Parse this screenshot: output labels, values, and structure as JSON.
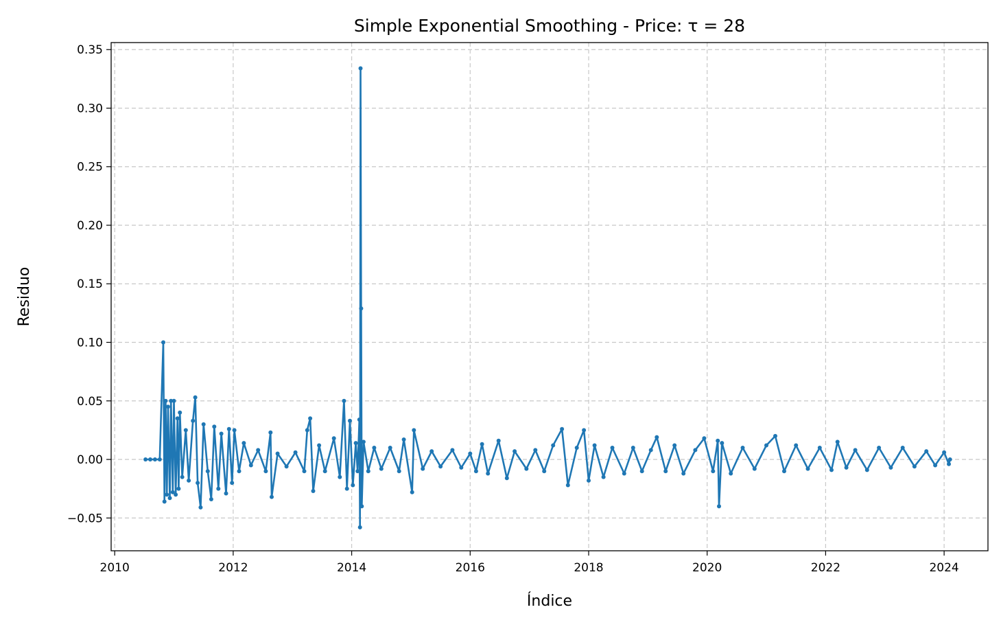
{
  "chart_data": {
    "type": "line",
    "title": "Simple Exponential Smoothing - Price: τ = 28",
    "xlabel": "Índice",
    "ylabel": "Residuo",
    "xlim": [
      2009.94,
      2024.74
    ],
    "ylim": [
      -0.078,
      0.356
    ],
    "x_ticks": [
      2010,
      2012,
      2014,
      2016,
      2018,
      2020,
      2022,
      2024
    ],
    "x_tick_labels": [
      "2010",
      "2012",
      "2014",
      "2016",
      "2018",
      "2020",
      "2022",
      "2024"
    ],
    "y_ticks": [
      -0.05,
      0.0,
      0.05,
      0.1,
      0.15,
      0.2,
      0.25,
      0.3,
      0.35
    ],
    "y_tick_labels": [
      "−0.05",
      "0.00",
      "0.05",
      "0.10",
      "0.15",
      "0.20",
      "0.25",
      "0.30",
      "0.35"
    ],
    "grid": true,
    "legend": "none",
    "colors": {
      "series": "#1f77b4",
      "grid": "#c8c8c8",
      "axes": "#000000"
    },
    "series": [
      {
        "marker": "circle",
        "points": [
          [
            2010.52,
            0.0
          ],
          [
            2010.6,
            0.0
          ],
          [
            2010.68,
            0.0
          ],
          [
            2010.76,
            0.0
          ],
          [
            2010.82,
            0.1
          ],
          [
            2010.84,
            -0.036
          ],
          [
            2010.86,
            0.05
          ],
          [
            2010.88,
            -0.03
          ],
          [
            2010.9,
            0.045
          ],
          [
            2010.93,
            -0.033
          ],
          [
            2010.95,
            0.05
          ],
          [
            2010.98,
            -0.028
          ],
          [
            2011.0,
            0.05
          ],
          [
            2011.03,
            -0.03
          ],
          [
            2011.06,
            0.035
          ],
          [
            2011.08,
            -0.025
          ],
          [
            2011.1,
            0.04
          ],
          [
            2011.14,
            -0.015
          ],
          [
            2011.2,
            0.025
          ],
          [
            2011.25,
            -0.018
          ],
          [
            2011.32,
            0.033
          ],
          [
            2011.36,
            0.053
          ],
          [
            2011.4,
            -0.02
          ],
          [
            2011.45,
            -0.041
          ],
          [
            2011.5,
            0.03
          ],
          [
            2011.57,
            -0.01
          ],
          [
            2011.63,
            -0.034
          ],
          [
            2011.68,
            0.028
          ],
          [
            2011.75,
            -0.025
          ],
          [
            2011.8,
            0.022
          ],
          [
            2011.88,
            -0.029
          ],
          [
            2011.93,
            0.026
          ],
          [
            2011.98,
            -0.02
          ],
          [
            2012.02,
            0.025
          ],
          [
            2012.1,
            -0.01
          ],
          [
            2012.18,
            0.014
          ],
          [
            2012.3,
            -0.005
          ],
          [
            2012.42,
            0.008
          ],
          [
            2012.55,
            -0.01
          ],
          [
            2012.63,
            0.023
          ],
          [
            2012.65,
            -0.032
          ],
          [
            2012.75,
            0.005
          ],
          [
            2012.9,
            -0.006
          ],
          [
            2013.05,
            0.006
          ],
          [
            2013.2,
            -0.01
          ],
          [
            2013.25,
            0.025
          ],
          [
            2013.3,
            0.035
          ],
          [
            2013.35,
            -0.027
          ],
          [
            2013.45,
            0.012
          ],
          [
            2013.55,
            -0.01
          ],
          [
            2013.7,
            0.018
          ],
          [
            2013.8,
            -0.015
          ],
          [
            2013.87,
            0.05
          ],
          [
            2013.92,
            -0.025
          ],
          [
            2013.97,
            0.033
          ],
          [
            2014.02,
            -0.022
          ],
          [
            2014.07,
            0.014
          ],
          [
            2014.1,
            -0.01
          ],
          [
            2014.13,
            0.034
          ],
          [
            2014.14,
            -0.058
          ],
          [
            2014.15,
            0.334
          ],
          [
            2014.16,
            0.129
          ],
          [
            2014.17,
            -0.04
          ],
          [
            2014.2,
            0.015
          ],
          [
            2014.28,
            -0.01
          ],
          [
            2014.38,
            0.01
          ],
          [
            2014.5,
            -0.008
          ],
          [
            2014.65,
            0.01
          ],
          [
            2014.8,
            -0.01
          ],
          [
            2014.88,
            0.017
          ],
          [
            2015.02,
            -0.028
          ],
          [
            2015.05,
            0.025
          ],
          [
            2015.2,
            -0.008
          ],
          [
            2015.35,
            0.007
          ],
          [
            2015.5,
            -0.006
          ],
          [
            2015.7,
            0.008
          ],
          [
            2015.85,
            -0.007
          ],
          [
            2016.0,
            0.005
          ],
          [
            2016.1,
            -0.01
          ],
          [
            2016.2,
            0.013
          ],
          [
            2016.3,
            -0.012
          ],
          [
            2016.48,
            0.016
          ],
          [
            2016.62,
            -0.016
          ],
          [
            2016.75,
            0.007
          ],
          [
            2016.95,
            -0.008
          ],
          [
            2017.1,
            0.008
          ],
          [
            2017.25,
            -0.01
          ],
          [
            2017.4,
            0.012
          ],
          [
            2017.55,
            0.026
          ],
          [
            2017.65,
            -0.022
          ],
          [
            2017.8,
            0.01
          ],
          [
            2017.92,
            0.025
          ],
          [
            2018.0,
            -0.018
          ],
          [
            2018.1,
            0.012
          ],
          [
            2018.25,
            -0.015
          ],
          [
            2018.4,
            0.01
          ],
          [
            2018.6,
            -0.012
          ],
          [
            2018.75,
            0.01
          ],
          [
            2018.9,
            -0.01
          ],
          [
            2019.05,
            0.008
          ],
          [
            2019.15,
            0.019
          ],
          [
            2019.3,
            -0.01
          ],
          [
            2019.45,
            0.012
          ],
          [
            2019.6,
            -0.012
          ],
          [
            2019.8,
            0.008
          ],
          [
            2019.95,
            0.018
          ],
          [
            2020.1,
            -0.01
          ],
          [
            2020.18,
            0.016
          ],
          [
            2020.2,
            -0.04
          ],
          [
            2020.25,
            0.014
          ],
          [
            2020.4,
            -0.012
          ],
          [
            2020.6,
            0.01
          ],
          [
            2020.8,
            -0.008
          ],
          [
            2021.0,
            0.012
          ],
          [
            2021.15,
            0.02
          ],
          [
            2021.3,
            -0.01
          ],
          [
            2021.5,
            0.012
          ],
          [
            2021.7,
            -0.008
          ],
          [
            2021.9,
            0.01
          ],
          [
            2022.1,
            -0.009
          ],
          [
            2022.2,
            0.015
          ],
          [
            2022.35,
            -0.007
          ],
          [
            2022.5,
            0.008
          ],
          [
            2022.7,
            -0.009
          ],
          [
            2022.9,
            0.01
          ],
          [
            2023.1,
            -0.007
          ],
          [
            2023.3,
            0.01
          ],
          [
            2023.5,
            -0.006
          ],
          [
            2023.7,
            0.007
          ],
          [
            2023.85,
            -0.005
          ],
          [
            2024.0,
            0.006
          ],
          [
            2024.08,
            -0.004
          ],
          [
            2024.1,
            0.0
          ]
        ]
      }
    ]
  }
}
